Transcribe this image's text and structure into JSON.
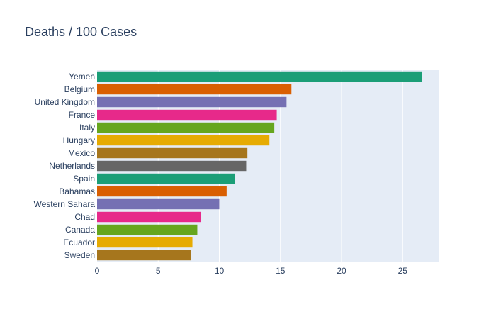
{
  "chart_data": {
    "type": "bar",
    "orientation": "horizontal",
    "title": "Deaths / 100 Cases",
    "xlabel": "",
    "ylabel": "",
    "xlim": [
      0,
      28
    ],
    "grid": true,
    "legend": "none",
    "x_ticks": [
      0,
      5,
      10,
      15,
      20,
      25
    ],
    "categories": [
      "Yemen",
      "Belgium",
      "United Kingdom",
      "France",
      "Italy",
      "Hungary",
      "Mexico",
      "Netherlands",
      "Spain",
      "Bahamas",
      "Western Sahara",
      "Chad",
      "Canada",
      "Ecuador",
      "Sweden"
    ],
    "values": [
      26.6,
      15.9,
      15.5,
      14.7,
      14.5,
      14.1,
      12.3,
      12.2,
      11.3,
      10.6,
      10.0,
      8.5,
      8.2,
      7.8,
      7.7
    ],
    "colors": [
      "#1b9e77",
      "#d95f02",
      "#7570b3",
      "#e7298a",
      "#66a61e",
      "#e6ab02",
      "#a6761d",
      "#666666",
      "#1b9e77",
      "#d95f02",
      "#7570b3",
      "#e7298a",
      "#66a61e",
      "#e6ab02",
      "#a6761d"
    ],
    "plot_bg": "#e5ecf6",
    "grid_color": "#ffffff"
  }
}
